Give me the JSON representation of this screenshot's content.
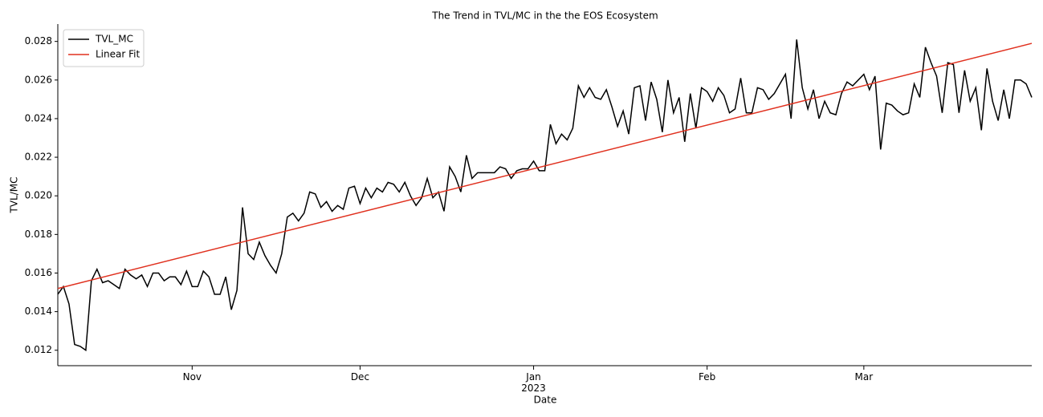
{
  "chart_data": {
    "type": "line",
    "title": "The Trend in TVL/MC in the the EOS Ecosystem",
    "x_label": "Date",
    "y_label": "TVL/MC",
    "categories": [
      null,
      null,
      null,
      null,
      null,
      null,
      null,
      null,
      null,
      null,
      null,
      null,
      null,
      null,
      null,
      null,
      null,
      null,
      null,
      null,
      null,
      null,
      null,
      null,
      "Nov",
      null,
      null,
      null,
      null,
      null,
      null,
      null,
      null,
      null,
      null,
      null,
      null,
      null,
      null,
      null,
      null,
      null,
      null,
      null,
      null,
      null,
      null,
      null,
      null,
      null,
      null,
      null,
      null,
      null,
      "Dec",
      null,
      null,
      null,
      null,
      null,
      null,
      null,
      null,
      null,
      null,
      null,
      null,
      null,
      null,
      null,
      null,
      null,
      null,
      null,
      null,
      null,
      null,
      null,
      null,
      null,
      null,
      null,
      null,
      null,
      null,
      "Jan\n2023",
      null,
      null,
      null,
      null,
      null,
      null,
      null,
      null,
      null,
      null,
      null,
      null,
      null,
      null,
      null,
      null,
      null,
      null,
      null,
      null,
      null,
      null,
      null,
      null,
      null,
      null,
      null,
      null,
      null,
      null,
      "Feb",
      null,
      null,
      null,
      null,
      null,
      null,
      null,
      null,
      null,
      null,
      null,
      null,
      null,
      null,
      null,
      null,
      null,
      null,
      null,
      null,
      null,
      null,
      null,
      null,
      null,
      null,
      null,
      "Mar",
      null,
      null,
      null,
      null,
      null,
      null,
      null,
      null,
      null,
      null,
      null,
      null,
      null,
      null,
      null,
      null,
      null,
      null,
      null,
      null,
      null,
      null,
      null,
      null,
      null,
      null,
      null,
      null,
      null,
      null
    ],
    "series": [
      {
        "name": "TVL_MC",
        "color": "#000000",
        "values": [
          0.0149,
          0.0153,
          0.0144,
          0.0123,
          0.0122,
          0.012,
          0.0156,
          0.0162,
          0.0155,
          0.0156,
          0.0154,
          0.0152,
          0.0162,
          0.0159,
          0.0157,
          0.0159,
          0.0153,
          0.016,
          0.016,
          0.0156,
          0.0158,
          0.0158,
          0.0154,
          0.0161,
          0.0153,
          0.0153,
          0.0161,
          0.0158,
          0.0149,
          0.0149,
          0.0158,
          0.0141,
          0.0151,
          0.0194,
          0.017,
          0.0167,
          0.0176,
          0.0169,
          0.0164,
          0.016,
          0.017,
          0.0189,
          0.0191,
          0.0187,
          0.0191,
          0.0202,
          0.0201,
          0.0194,
          0.0197,
          0.0192,
          0.0195,
          0.0193,
          0.0204,
          0.0205,
          0.0196,
          0.0204,
          0.0199,
          0.0204,
          0.0202,
          0.0207,
          0.0206,
          0.0202,
          0.0207,
          0.02,
          0.0195,
          0.0199,
          0.0209,
          0.0199,
          0.0202,
          0.0192,
          0.0215,
          0.021,
          0.0202,
          0.0221,
          0.0209,
          0.0212,
          0.0212,
          0.0212,
          0.0212,
          0.0215,
          0.0214,
          0.0209,
          0.0213,
          0.0214,
          0.0214,
          0.0218,
          0.0213,
          0.0213,
          0.0237,
          0.0227,
          0.0232,
          0.0229,
          0.0235,
          0.0257,
          0.0251,
          0.0256,
          0.0251,
          0.025,
          0.0255,
          0.0246,
          0.0236,
          0.0244,
          0.0232,
          0.0256,
          0.0257,
          0.0239,
          0.0259,
          0.025,
          0.0233,
          0.026,
          0.0243,
          0.0251,
          0.0228,
          0.0253,
          0.0235,
          0.0256,
          0.0254,
          0.0249,
          0.0256,
          0.0252,
          0.0243,
          0.0245,
          0.0261,
          0.0243,
          0.0243,
          0.0256,
          0.0255,
          0.025,
          0.0253,
          0.0258,
          0.0263,
          0.024,
          0.0281,
          0.0256,
          0.0245,
          0.0255,
          0.024,
          0.0249,
          0.0243,
          0.0242,
          0.0253,
          0.0259,
          0.0257,
          0.026,
          0.0263,
          0.0255,
          0.0262,
          0.0224,
          0.0248,
          0.0247,
          0.0244,
          0.0242,
          0.0243,
          0.0258,
          0.0251,
          0.0277,
          0.0269,
          0.0262,
          0.0243,
          0.0269,
          0.0268,
          0.0243,
          0.0265,
          0.0249,
          0.0256,
          0.0234,
          0.0266,
          0.0249,
          0.0239,
          0.0255,
          0.024,
          0.026,
          0.026,
          0.0258,
          0.0251
        ]
      }
    ],
    "fit": {
      "name": "Linear Fit",
      "color": "#e0301e",
      "start": 0.0152,
      "end": 0.0279
    },
    "ylim": [
      0.0112,
      0.0289
    ],
    "yticks": [
      0.012,
      0.014,
      0.016,
      0.018,
      {
        "value": 0.02,
        "label": "0.020"
      },
      0.022,
      0.024,
      0.026,
      0.028
    ],
    "legend": "upper-left"
  }
}
